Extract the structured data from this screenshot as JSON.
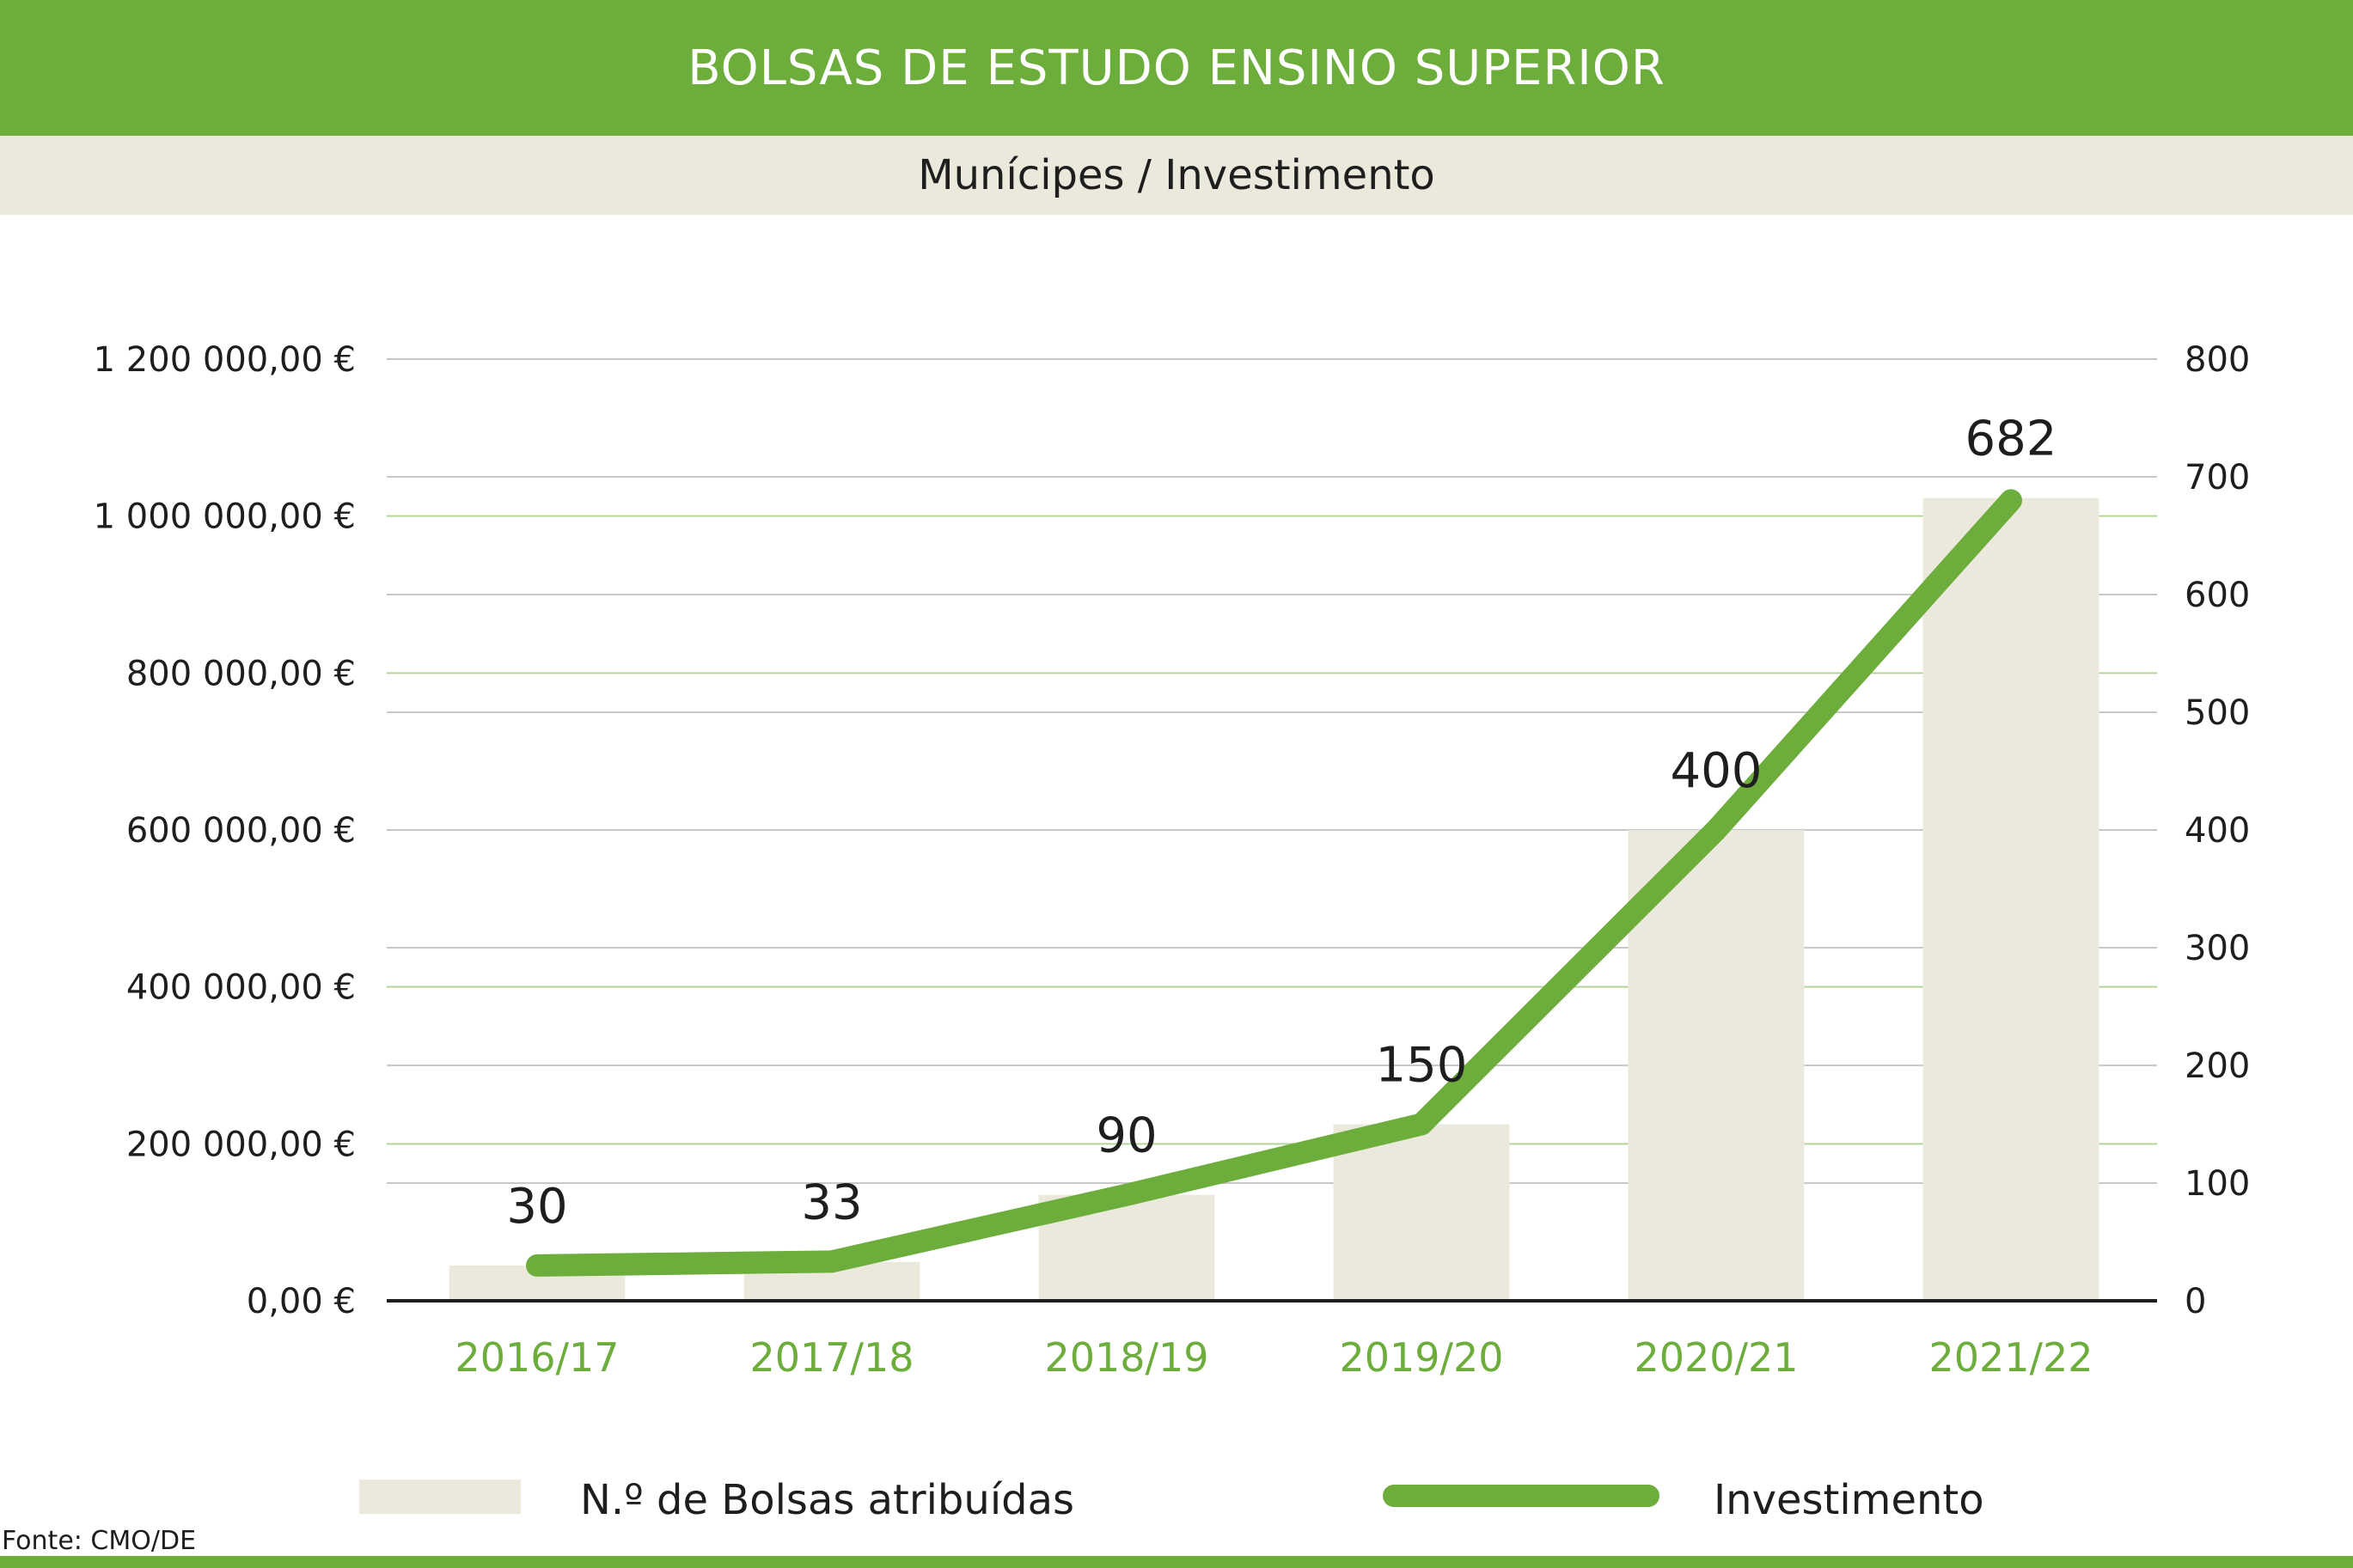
{
  "header": {
    "title": "BOLSAS DE ESTUDO ENSINO SUPERIOR",
    "subtitle": "Munícipes / Investimento"
  },
  "source": "Fonte: CMO/DE",
  "colors": {
    "accent": "#6cad3c",
    "bar": "#ebe9dc",
    "text": "#1e1e1e"
  },
  "chart_data": {
    "type": "bar",
    "categories": [
      "2016/17",
      "2017/18",
      "2018/19",
      "2019/20",
      "2020/21",
      "2021/22"
    ],
    "series": [
      {
        "name": "N.º de Bolsas atribuídas",
        "type": "bar",
        "axis": "right",
        "values": [
          30,
          33,
          90,
          150,
          400,
          682
        ],
        "labels": [
          "30",
          "33",
          "90",
          "150",
          "400",
          "682"
        ]
      },
      {
        "name": "Investimento",
        "type": "line",
        "axis": "left",
        "values": [
          45000,
          50000,
          135000,
          225000,
          600000,
          1020000
        ]
      }
    ],
    "y_left": {
      "range": [
        0,
        1200000
      ],
      "ticks": [
        0,
        200000,
        400000,
        600000,
        800000,
        1000000,
        1200000
      ],
      "tick_labels": [
        "0,00 €",
        "200 000,00 €",
        "400 000,00 €",
        "600 000,00 €",
        "800 000,00 €",
        "1 000 000,00 €",
        "1 200 000,00 €"
      ]
    },
    "y_right": {
      "range": [
        0,
        800
      ],
      "ticks": [
        0,
        100,
        200,
        300,
        400,
        500,
        600,
        700,
        800
      ],
      "tick_labels": [
        "0",
        "100",
        "200",
        "300",
        "400",
        "500",
        "600",
        "700",
        "800"
      ]
    },
    "grid": true,
    "legend_position": "bottom"
  }
}
